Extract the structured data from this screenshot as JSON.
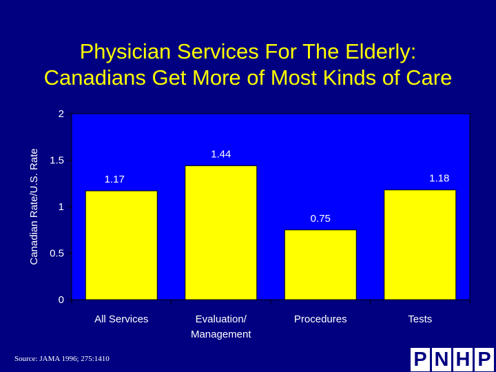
{
  "title_lines": [
    "Physician Services For The Elderly:",
    "Canadians Get More of Most Kinds of Care"
  ],
  "chart_data": {
    "type": "bar",
    "title": "Physician Services For The Elderly: Canadians Get More of Most Kinds of Care",
    "categories": [
      "All Services",
      "Evaluation/ Management",
      "Procedures",
      "Tests"
    ],
    "values": [
      1.17,
      1.44,
      0.75,
      1.18
    ],
    "data_labels": [
      "1.17",
      "1.44",
      "0.75",
      "1.18"
    ],
    "xlabel": "",
    "ylabel": "Canadian Rate/U.S. Rate",
    "ylim": [
      0,
      2
    ],
    "yticks": [
      "0",
      "0.5",
      "1",
      "1.5",
      "2"
    ],
    "grid": false,
    "plot_background": "#0000ff",
    "bar_color": "#ffff00"
  },
  "source": "Source: JAMA 1996; 275:1410",
  "logo_letters": [
    "P",
    "N",
    "H",
    "P"
  ],
  "colors": {
    "background": "#000080",
    "title": "#ffff00",
    "text": "#ffffff"
  }
}
